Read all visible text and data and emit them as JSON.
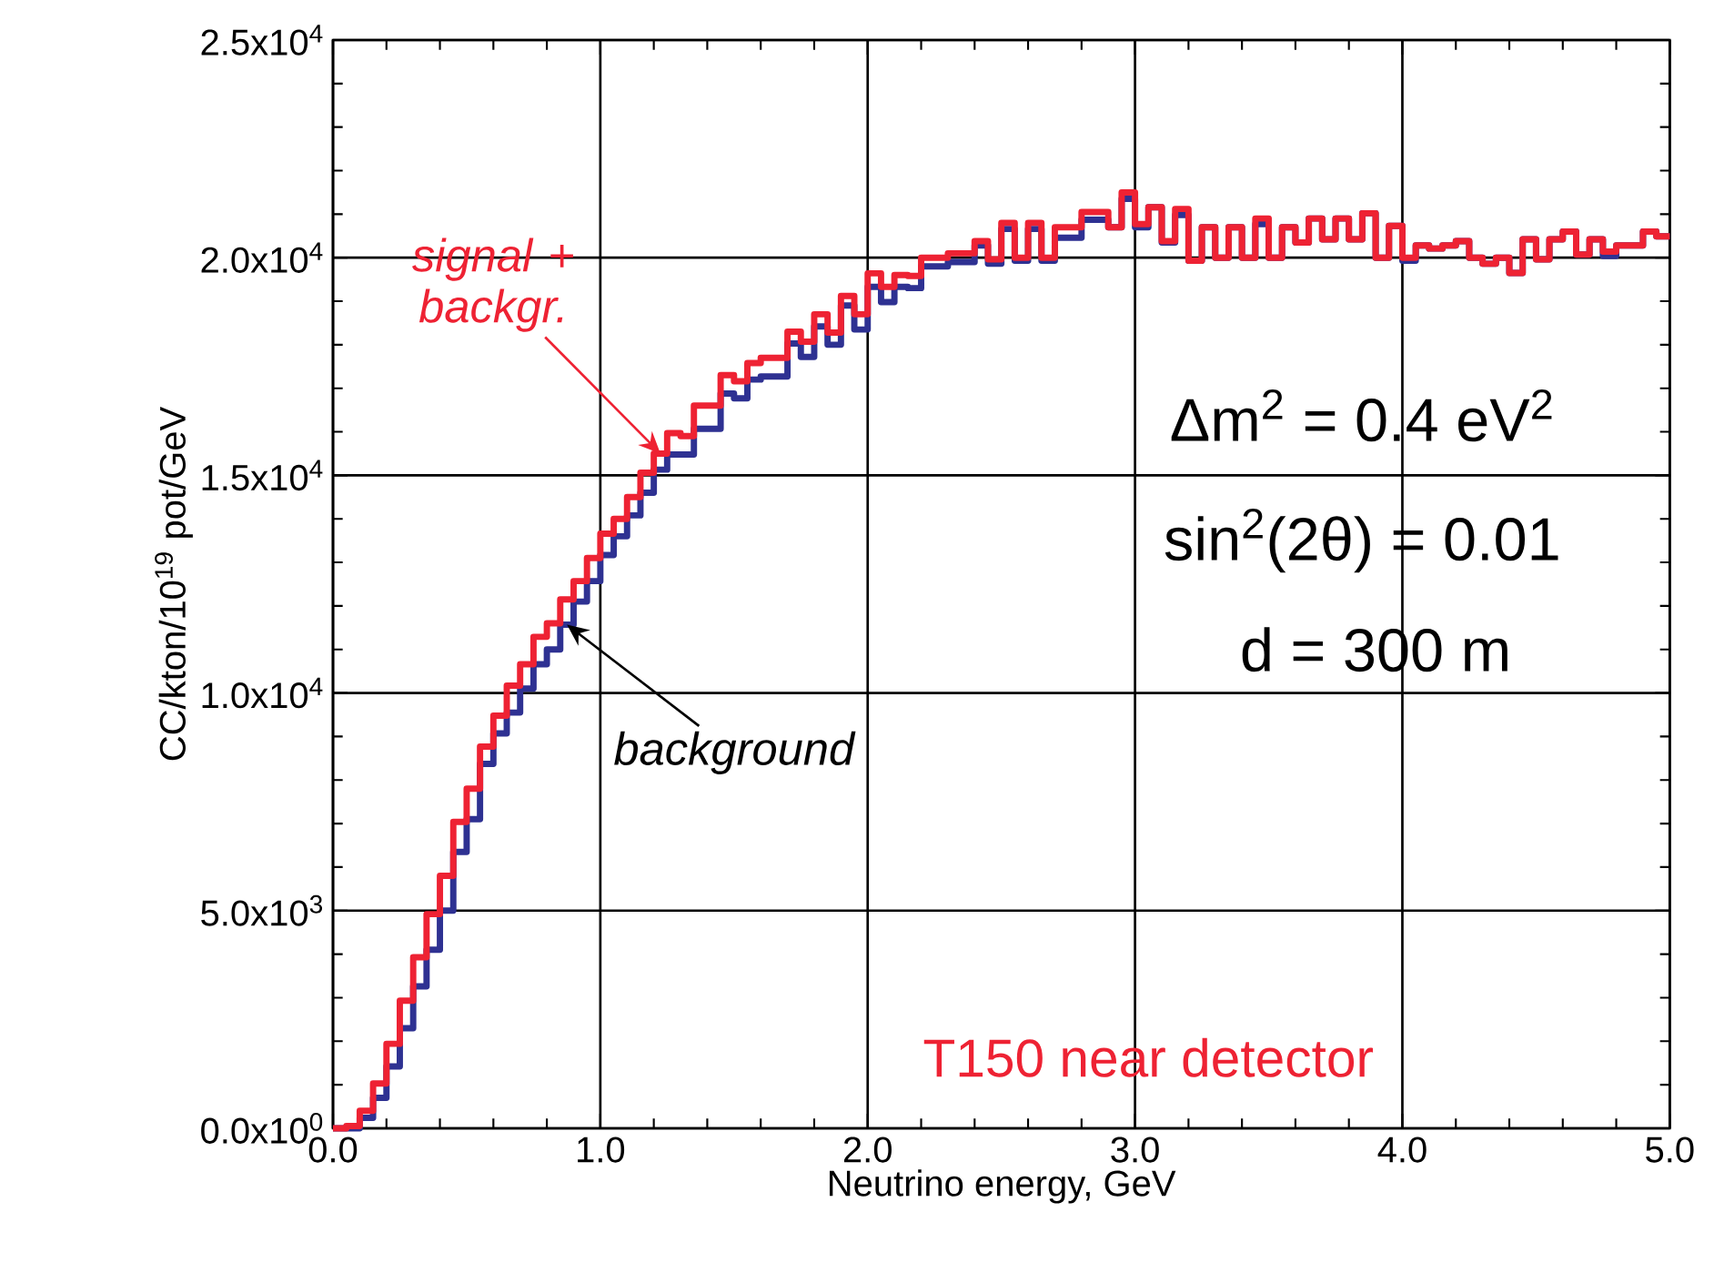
{
  "chart_data": {
    "type": "histogram",
    "xlabel": "Neutrino energy, GeV",
    "ylabel": "CC/kton/10$^{19}$ pot/GeV",
    "bins": [
      0,
      0.05,
      0.1,
      0.15,
      0.2,
      0.25,
      0.3,
      0.35,
      0.4,
      0.45,
      0.5,
      0.55,
      0.6,
      0.65,
      0.7,
      0.75,
      0.8,
      0.85,
      0.9,
      0.95,
      1,
      1.05,
      1.1,
      1.15,
      1.2,
      1.25,
      1.3,
      1.35,
      1.4,
      1.45,
      1.5,
      1.55,
      1.6,
      1.65,
      1.7,
      1.75,
      1.8,
      1.85,
      1.9,
      1.95,
      2,
      2.05,
      2.1,
      2.15,
      2.2,
      2.25,
      2.3,
      2.35,
      2.4,
      2.45,
      2.5,
      2.55,
      2.6,
      2.65,
      2.7,
      2.75,
      2.8,
      2.85,
      2.9,
      2.95,
      3,
      3.05,
      3.1,
      3.15,
      3.2,
      3.25,
      3.3,
      3.35,
      3.4,
      3.45,
      3.5,
      3.55,
      3.6,
      3.65,
      3.7,
      3.75,
      3.8,
      3.85,
      3.9,
      3.95,
      4,
      4.05,
      4.1,
      4.15,
      4.2,
      4.25,
      4.3,
      4.35,
      4.4,
      4.45,
      4.5,
      4.55,
      4.6,
      4.65,
      4.7,
      4.75,
      4.8,
      4.85,
      4.9,
      4.95,
      5
    ],
    "series": [
      {
        "color": "#2e3192",
        "values": [
          0,
          0,
          240,
          700,
          1420,
          2300,
          3260,
          4100,
          5000,
          6350,
          7100,
          8370,
          9070,
          9550,
          10100,
          10660,
          11000,
          11570,
          12100,
          12570,
          13170,
          13600,
          14080,
          14600,
          15130,
          15480,
          15480,
          16070,
          16070,
          16880,
          16770,
          17200,
          17270,
          17270,
          18030,
          17720,
          18420,
          18000,
          18900,
          18350,
          19330,
          18980,
          19330,
          19300,
          19800,
          19800,
          19900,
          19900,
          20280,
          19860,
          20660,
          19930,
          20660,
          19930,
          20460,
          20460,
          20870,
          20870,
          20700,
          21350,
          20700,
          21160,
          20350,
          20980,
          19930,
          20700,
          20000,
          20700,
          20000,
          20770,
          20000,
          20700,
          20350,
          20900,
          20420,
          20900,
          20420,
          21020,
          20000,
          20730,
          19930,
          20280,
          20210,
          20280,
          20380,
          20000,
          19860,
          20000,
          19650,
          20420,
          19960,
          20420,
          20600,
          20070,
          20420,
          20040,
          20280,
          20280,
          20600,
          20490
        ]
      },
      {
        "color": "#ee2233",
        "values": [
          0,
          50,
          400,
          1030,
          1940,
          2930,
          3930,
          4920,
          5800,
          7040,
          7800,
          8770,
          9480,
          10170,
          10660,
          11290,
          11600,
          12150,
          12570,
          13100,
          13660,
          14000,
          14500,
          15060,
          15500,
          15970,
          15900,
          16600,
          16600,
          17300,
          17160,
          17580,
          17700,
          17700,
          18300,
          18070,
          18700,
          18280,
          19120,
          18700,
          19640,
          19330,
          19600,
          19580,
          20000,
          20000,
          20100,
          20100,
          20380,
          19960,
          20800,
          20000,
          20800,
          20000,
          20700,
          20700,
          21050,
          21050,
          20700,
          21500,
          20770,
          21160,
          20380,
          21120,
          19930,
          20700,
          20000,
          20700,
          20000,
          20900,
          20000,
          20700,
          20350,
          20900,
          20420,
          20900,
          20420,
          21020,
          20000,
          20730,
          20000,
          20280,
          20210,
          20280,
          20380,
          20000,
          19860,
          20000,
          19650,
          20420,
          19960,
          20420,
          20600,
          20070,
          20420,
          20140,
          20280,
          20280,
          20600,
          20490
        ]
      }
    ],
    "xlim": [
      0,
      5
    ],
    "ylim": [
      0,
      25000
    ],
    "xticks": [
      {
        "value": 0,
        "label": "0.0"
      },
      {
        "value": 1,
        "label": "1.0"
      },
      {
        "value": 2,
        "label": "2.0"
      },
      {
        "value": 3,
        "label": "3.0"
      },
      {
        "value": 4,
        "label": "4.0"
      },
      {
        "value": 5,
        "label": "5.0"
      }
    ],
    "yticks": [
      {
        "value": 0,
        "label": "0.0x10$^{0}$"
      },
      {
        "value": 5000,
        "label": "5.0x10$^{3}$"
      },
      {
        "value": 10000,
        "label": "1.0x10$^{4}$"
      },
      {
        "value": 15000,
        "label": "1.5x10$^{4}$"
      },
      {
        "value": 20000,
        "label": "2.0x10$^{4}$"
      },
      {
        "value": 25000,
        "label": "2.5x10$^{4}$"
      }
    ],
    "grid": true,
    "annotations": [
      {
        "text": "signal + backgr.",
        "x": 1.225,
        "y": 15500
      },
      {
        "text": "background",
        "x": 0.875,
        "y": 11570
      },
      "Δm$^{2}$ = 0.4 eV$^{2}$",
      "sin$^{2}$(2θ) = 0.01",
      "d = 300 m",
      "T150 near detector"
    ]
  }
}
